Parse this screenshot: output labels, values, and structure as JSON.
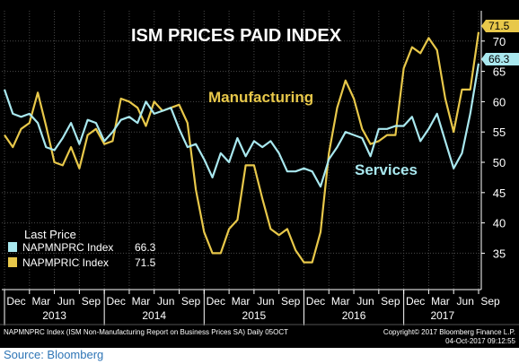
{
  "source_label": "Source: Bloomberg",
  "footer": {
    "left": "NAPMNPRC Index (ISM Non-Manufacturing Report on Business Prices SA)  Daily 05OCT",
    "copyright": "Copyright© 2017 Bloomberg Finance L.P.",
    "timestamp": "04-Oct-2017 09:12:55"
  },
  "colors": {
    "background": "#000000",
    "manufacturing": "#e8c84a",
    "services": "#a9e8ef",
    "axis_text": "#ffffff",
    "grid": "#4a4a4a"
  },
  "chart_data": {
    "type": "line",
    "title": "ISM PRICES PAID INDEX",
    "annotations": [
      "Manufacturing",
      "Services"
    ],
    "legend": {
      "title": "Last Price",
      "placement": "bottom-left",
      "entries": [
        {
          "label": "NAPMNPRC Index",
          "value": "66.3",
          "series": "services"
        },
        {
          "label": "NAPMPRIC Index",
          "value": "71.5",
          "series": "manufacturing"
        }
      ]
    },
    "y_axis": {
      "position": "right",
      "ylim": [
        29,
        75
      ],
      "ticks": [
        "35",
        "40",
        "45",
        "50",
        "55",
        "60",
        "65",
        "70"
      ]
    },
    "x_axis": {
      "month_labels": [
        "Dec",
        "Mar",
        "Jun",
        "Sep",
        "Dec",
        "Mar",
        "Jun",
        "Sep",
        "Dec",
        "Mar",
        "Jun",
        "Sep",
        "Dec",
        "Mar",
        "Jun",
        "Sep",
        "Dec",
        "Mar",
        "Jun",
        "Sep"
      ],
      "year_labels": [
        "2013",
        "2014",
        "2015",
        "2016",
        "2017"
      ]
    },
    "last_value_labels": {
      "manufacturing": "71.5",
      "services": "66.3"
    },
    "grid": true,
    "x": [
      "2012-12",
      "2013-01",
      "2013-02",
      "2013-03",
      "2013-04",
      "2013-05",
      "2013-06",
      "2013-07",
      "2013-08",
      "2013-09",
      "2013-10",
      "2013-11",
      "2013-12",
      "2014-01",
      "2014-02",
      "2014-03",
      "2014-04",
      "2014-05",
      "2014-06",
      "2014-07",
      "2014-08",
      "2014-09",
      "2014-10",
      "2014-11",
      "2014-12",
      "2015-01",
      "2015-02",
      "2015-03",
      "2015-04",
      "2015-05",
      "2015-06",
      "2015-07",
      "2015-08",
      "2015-09",
      "2015-10",
      "2015-11",
      "2015-12",
      "2016-01",
      "2016-02",
      "2016-03",
      "2016-04",
      "2016-05",
      "2016-06",
      "2016-07",
      "2016-08",
      "2016-09",
      "2016-10",
      "2016-11",
      "2016-12",
      "2017-01",
      "2017-02",
      "2017-03",
      "2017-04",
      "2017-05",
      "2017-06",
      "2017-07",
      "2017-08",
      "2017-09"
    ],
    "series": [
      {
        "name": "Manufacturing",
        "key": "manufacturing",
        "values": [
          54.5,
          52.5,
          55.5,
          56.5,
          61.5,
          56,
          50,
          49.5,
          52.5,
          49,
          54.5,
          55.5,
          53,
          53.5,
          60.5,
          60,
          59,
          56,
          60,
          58.5,
          59,
          59.5,
          56.5,
          45.5,
          38.5,
          35,
          35,
          39,
          40.5,
          49.5,
          49.5,
          44,
          39,
          38,
          39,
          35.5,
          33.5,
          33.5,
          38.5,
          51.5,
          59,
          63.5,
          60.5,
          55.5,
          53,
          53.5,
          54.5,
          54.5,
          65.5,
          69,
          68,
          70.5,
          68.5,
          60.5,
          55,
          62,
          62,
          71.5
        ]
      },
      {
        "name": "Services",
        "key": "services",
        "values": [
          62,
          58,
          57.5,
          58,
          56.5,
          52.5,
          52,
          54,
          56.5,
          53,
          57,
          56.5,
          53.5,
          55,
          57,
          57.5,
          56.5,
          60,
          58,
          58.5,
          59,
          55.5,
          52.5,
          53,
          50.5,
          47.5,
          51.5,
          50,
          54,
          51,
          53.5,
          52.5,
          53.5,
          51.5,
          48.5,
          48.5,
          49,
          48.5,
          46,
          50.5,
          52.5,
          55,
          54.5,
          54,
          51,
          55.5,
          55.5,
          56,
          56,
          57.5,
          53.5,
          55.5,
          58,
          53.5,
          49,
          51.5,
          58,
          66.3
        ]
      }
    ]
  }
}
